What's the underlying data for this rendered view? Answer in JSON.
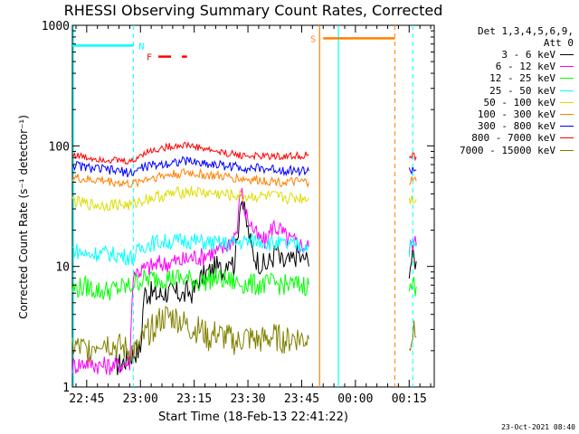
{
  "chart_data": {
    "type": "line",
    "title": "RHESSI Observing Summary Count Rates, Corrected",
    "xlabel": "Start Time (18-Feb-13 22:41:22)",
    "ylabel": "Corrected Count Rate (s⁻¹ detector⁻¹)",
    "yscale": "log",
    "ylim": [
      1,
      1000
    ],
    "xlim_minutes": [
      -4,
      97
    ],
    "ytick_values": [
      1,
      10,
      100,
      1000
    ],
    "ytick_labels": [
      "1",
      "10",
      "100",
      "1000"
    ],
    "xtick_values": [
      0,
      15,
      30,
      45,
      60,
      75,
      90
    ],
    "xtick_labels": [
      "22:45",
      "23:00",
      "23:15",
      "23:30",
      "23:45",
      "00:00",
      "00:15"
    ],
    "legend_header": [
      "Det 1,3,4,5,6,9,",
      "Att 0"
    ],
    "legend_position": "top-right",
    "series": [
      {
        "name": "3 - 6 keV",
        "color": "#000000",
        "segments": [
          {
            "x": [
              8,
              10,
              12,
              14,
              15,
              16,
              18,
              20,
              22,
              24,
              26,
              27,
              28,
              29,
              30,
              31,
              32,
              33,
              34,
              35,
              36,
              37,
              38,
              39,
              40,
              41,
              42,
              43,
              44,
              45,
              46,
              47,
              48,
              49,
              50,
              51,
              52,
              53,
              54,
              55,
              56,
              57,
              58,
              59,
              60,
              61,
              62
            ],
            "y": [
              1.5,
              1.6,
              1.8,
              2.0,
              2.0,
              6.0,
              6.0,
              5.8,
              6.1,
              6.0,
              6.0,
              5.6,
              6.2,
              6.0,
              6.3,
              7.5,
              8.0,
              8.5,
              9.0,
              9.2,
              10.0,
              9.5,
              9.0,
              11.0,
              12.5,
              10.0,
              16.0,
              40.0,
              28.0,
              20.0,
              14.0,
              12.0,
              11.0,
              10.5,
              10.0,
              11.0,
              12.0,
              14.0,
              11.0,
              10.5,
              11.0,
              10.8,
              12.0,
              13.0,
              11.0,
              12.0,
              10.0
            ]
          },
          {
            "x": [
              90,
              91,
              92
            ],
            "y": [
              10,
              12,
              11
            ]
          }
        ]
      },
      {
        "name": "6 - 12 keV",
        "color": "#ff00ff",
        "segments": [
          {
            "x": [
              -4,
              0,
              4,
              8,
              12,
              13,
              14,
              16,
              18,
              20,
              22,
              24,
              26,
              28,
              30,
              32,
              34,
              36,
              38,
              40,
              42,
              43,
              44,
              45,
              46,
              47,
              48,
              50,
              52,
              54,
              56,
              58,
              60,
              62
            ],
            "y": [
              1.5,
              1.6,
              1.5,
              1.5,
              1.6,
              9.0,
              9.0,
              9.5,
              10.0,
              10.5,
              10.5,
              11.0,
              11.0,
              11.5,
              12.0,
              12.0,
              13.0,
              13.0,
              14.0,
              16.0,
              20.0,
              45.0,
              30.0,
              25.0,
              22.0,
              19.0,
              17.0,
              16.0,
              22.0,
              20.0,
              17.0,
              16.0,
              15.0,
              14.5
            ]
          },
          {
            "x": [
              90,
              91,
              92
            ],
            "y": [
              14,
              16,
              15
            ]
          }
        ]
      },
      {
        "name": "12 - 25 keV",
        "color": "#00ff00",
        "segments": [
          {
            "x": [
              -4,
              0,
              4,
              8,
              12,
              13,
              14,
              16,
              20,
              24,
              28,
              32,
              36,
              40,
              44,
              48,
              52,
              56,
              60,
              62
            ],
            "y": [
              6.5,
              6.8,
              6.2,
              6.5,
              6.8,
              7.2,
              7.5,
              7.8,
              8.0,
              8.0,
              7.8,
              7.5,
              8.0,
              7.5,
              7.2,
              7.0,
              7.2,
              7.0,
              7.0,
              7.0
            ]
          },
          {
            "x": [
              90,
              91,
              92
            ],
            "y": [
              6.5,
              7.0,
              6.8
            ]
          }
        ]
      },
      {
        "name": "25 - 50 keV",
        "color": "#00ffff",
        "segments": [
          {
            "x": [
              -4,
              0,
              4,
              8,
              12,
              13,
              14,
              16,
              20,
              24,
              28,
              32,
              36,
              40,
              44,
              48,
              52,
              56,
              60,
              62
            ],
            "y": [
              14.0,
              12.5,
              13.0,
              12.5,
              12.0,
              12.0,
              13.0,
              15.0,
              16.0,
              16.0,
              16.5,
              16.0,
              15.5,
              15.5,
              16.0,
              16.5,
              15.5,
              15.0,
              15.0,
              14.5
            ]
          },
          {
            "x": [
              90,
              91,
              92
            ],
            "y": [
              14,
              15,
              14.5
            ]
          }
        ]
      },
      {
        "name": "50 - 100 keV",
        "color": "#dddd00",
        "segments": [
          {
            "x": [
              -4,
              0,
              4,
              8,
              12,
              13,
              14,
              16,
              20,
              24,
              28,
              32,
              36,
              40,
              44,
              48,
              52,
              56,
              60,
              62
            ],
            "y": [
              35,
              33,
              32,
              33,
              32,
              32,
              34,
              36,
              38,
              40,
              42,
              41,
              40,
              39,
              38,
              38,
              38,
              37,
              37,
              37
            ]
          },
          {
            "x": [
              90,
              91,
              92
            ],
            "y": [
              36,
              37,
              36
            ]
          }
        ]
      },
      {
        "name": "100 - 300 keV",
        "color": "#ff8000",
        "segments": [
          {
            "x": [
              -4,
              0,
              4,
              8,
              12,
              13,
              14,
              16,
              20,
              24,
              28,
              32,
              36,
              40,
              44,
              48,
              52,
              56,
              60,
              62
            ],
            "y": [
              55,
              52,
              52,
              50,
              48,
              48,
              50,
              53,
              56,
              58,
              60,
              58,
              56,
              55,
              53,
              52,
              51,
              50,
              50,
              50
            ]
          },
          {
            "x": [
              90,
              91,
              92
            ],
            "y": [
              50,
              52,
              51
            ]
          }
        ]
      },
      {
        "name": "300 - 800 keV",
        "color": "#0000ff",
        "segments": [
          {
            "x": [
              -4,
              0,
              4,
              8,
              12,
              13,
              14,
              16,
              20,
              24,
              28,
              32,
              36,
              40,
              44,
              48,
              52,
              56,
              60,
              62
            ],
            "y": [
              70,
              66,
              64,
              62,
              60,
              60,
              63,
              67,
              70,
              73,
              75,
              72,
              70,
              68,
              66,
              65,
              64,
              63,
              62,
              62
            ]
          },
          {
            "x": [
              90,
              91,
              92
            ],
            "y": [
              62,
              64,
              63
            ]
          }
        ]
      },
      {
        "name": "800 - 7000 keV",
        "color": "#ff0000",
        "segments": [
          {
            "x": [
              -4,
              0,
              4,
              8,
              12,
              13,
              14,
              16,
              20,
              24,
              28,
              32,
              36,
              40,
              44,
              48,
              52,
              56,
              60,
              62
            ],
            "y": [
              85,
              80,
              78,
              76,
              74,
              74,
              80,
              88,
              94,
              100,
              102,
              96,
              90,
              86,
              83,
              82,
              82,
              82,
              83,
              84
            ]
          },
          {
            "x": [
              90,
              91,
              92
            ],
            "y": [
              80,
              82,
              81
            ]
          }
        ]
      },
      {
        "name": "7000 - 15000 keV",
        "color": "#808000",
        "segments": [
          {
            "x": [
              -4,
              0,
              4,
              8,
              12,
              14,
              16,
              18,
              20,
              22,
              24,
              26,
              28,
              30,
              32,
              34,
              36,
              38,
              40,
              42,
              44,
              46,
              48,
              50,
              52,
              54,
              56,
              58,
              60,
              62
            ],
            "y": [
              2.2,
              2.0,
              2.5,
              2.2,
              2.0,
              2.0,
              2.6,
              3.0,
              3.5,
              3.8,
              3.8,
              3.6,
              3.2,
              3.0,
              3.0,
              2.5,
              2.8,
              2.6,
              2.5,
              2.3,
              2.6,
              2.5,
              2.4,
              2.5,
              2.6,
              2.5,
              2.4,
              2.6,
              2.5,
              2.5
            ]
          },
          {
            "x": [
              90,
              91,
              92
            ],
            "y": [
              2.5,
              2.8,
              2.6
            ]
          }
        ]
      }
    ],
    "annotations": [
      {
        "label": "N",
        "color": "#00ffff",
        "x_start": -4,
        "x_end": 13,
        "y": 680
      },
      {
        "label": "F",
        "color": "#ff0000",
        "x_start": 20,
        "x_end": 28,
        "y": 550
      },
      {
        "label": "S",
        "color": "#ff8000",
        "x_start": 66,
        "x_end": 86,
        "y": 780
      }
    ],
    "cyan_intervals": [
      [
        -4,
        13
      ],
      [
        70,
        91
      ]
    ],
    "orange_intervals": [
      [
        65,
        86
      ]
    ],
    "timestamp": "23-Oct-2021 08:40"
  }
}
